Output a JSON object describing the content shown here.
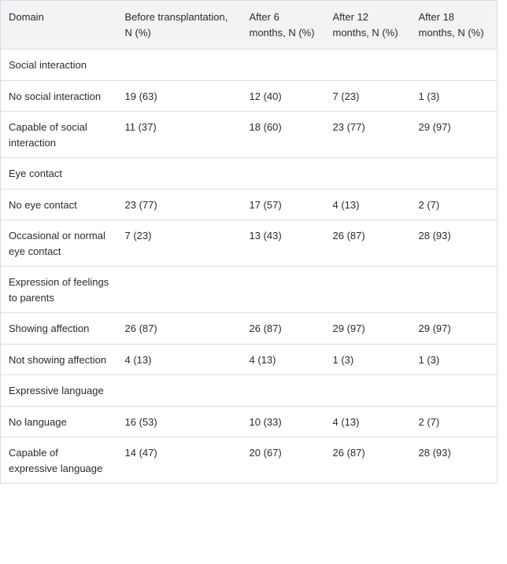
{
  "table": {
    "headers": [
      "Domain",
      "Before transplantation, N (%)",
      "After 6 months, N (%)",
      "After 12 months, N (%)",
      "After 18 months, N (%)"
    ],
    "rows": [
      {
        "cells": [
          "Social interaction",
          "",
          "",
          "",
          ""
        ],
        "section": true
      },
      {
        "cells": [
          "No social interaction",
          "19 (63)",
          "12 (40)",
          "7 (23)",
          "1 (3)"
        ]
      },
      {
        "cells": [
          "Capable of social interaction",
          "11 (37)",
          "18 (60)",
          "23 (77)",
          "29 (97)"
        ]
      },
      {
        "cells": [
          "Eye contact",
          "",
          "",
          "",
          ""
        ],
        "section": true
      },
      {
        "cells": [
          "No eye contact",
          "23 (77)",
          "17 (57)",
          "4 (13)",
          "2 (7)"
        ]
      },
      {
        "cells": [
          "Occasional or normal eye contact",
          "7 (23)",
          "13 (43)",
          "26 (87)",
          "28 (93)"
        ]
      },
      {
        "cells": [
          "Expression of feelings to parents",
          "",
          "",
          "",
          ""
        ],
        "section": true
      },
      {
        "cells": [
          "Showing affection",
          "26 (87)",
          "26 (87)",
          "29 (97)",
          "29 (97)"
        ]
      },
      {
        "cells": [
          "Not showing affection",
          "4 (13)",
          "4 (13)",
          "1 (3)",
          "1 (3)"
        ]
      },
      {
        "cells": [
          "Expressive language",
          "",
          "",
          "",
          ""
        ],
        "section": true
      },
      {
        "cells": [
          "No language",
          "16 (53)",
          "10 (33)",
          "4 (13)",
          "2 (7)"
        ]
      },
      {
        "cells": [
          "Capable of expressive language",
          "14 (47)",
          "20 (67)",
          "26 (87)",
          "28 (93)"
        ]
      }
    ]
  }
}
